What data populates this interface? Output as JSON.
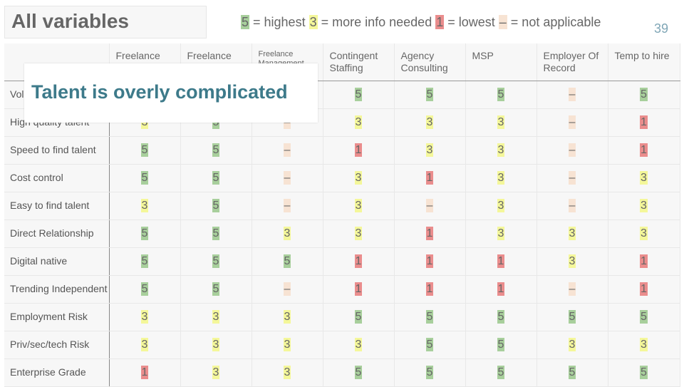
{
  "title": "All variables",
  "page_number": "39",
  "overlay_text": "Talent is overly complicated",
  "legend": [
    {
      "symbol": "5",
      "text": " = highest ",
      "color": "#a8cf9c"
    },
    {
      "symbol": "3",
      "text": " = more info needed ",
      "color": "#f4f79a"
    },
    {
      "symbol": "1",
      "text": " = lowest ",
      "color": "#ea8d8d"
    },
    {
      "symbol": "–",
      "text": " = not applicable",
      "color": "#f7e3d3"
    }
  ],
  "columns": [
    "Freelance",
    "Freelance",
    "Freelance Management",
    "Contingent Staffing",
    "Agency Consulting",
    "MSP",
    "Employer Of Record",
    "Temp to hire"
  ],
  "rows": [
    {
      "label": "Volume",
      "values": [
        "",
        "",
        "",
        "5",
        "5",
        "5",
        "–",
        "5"
      ]
    },
    {
      "label": "High quality talent",
      "values": [
        "3",
        "5",
        "–",
        "3",
        "3",
        "3",
        "–",
        "1"
      ]
    },
    {
      "label": "Speed to find talent",
      "values": [
        "5",
        "5",
        "–",
        "1",
        "3",
        "3",
        "–",
        "1"
      ]
    },
    {
      "label": "Cost control",
      "values": [
        "5",
        "5",
        "–",
        "3",
        "1",
        "3",
        "–",
        "3"
      ]
    },
    {
      "label": "Easy to find talent",
      "values": [
        "3",
        "5",
        "–",
        "3",
        "–",
        "3",
        "–",
        "3"
      ]
    },
    {
      "label": "Direct Relationship",
      "values": [
        "5",
        "5",
        "3",
        "3",
        "1",
        "3",
        "3",
        "3"
      ]
    },
    {
      "label": "Digital native",
      "values": [
        "5",
        "5",
        "5",
        "1",
        "1",
        "1",
        "3",
        "1"
      ]
    },
    {
      "label": "Trending Independent",
      "values": [
        "5",
        "5",
        "–",
        "1",
        "1",
        "1",
        "–",
        "1"
      ]
    },
    {
      "label": "Employment Risk",
      "values": [
        "3",
        "3",
        "3",
        "5",
        "5",
        "5",
        "5",
        "5"
      ]
    },
    {
      "label": "Priv/sec/tech Risk",
      "values": [
        "3",
        "3",
        "3",
        "3",
        "5",
        "5",
        "3",
        "3"
      ]
    },
    {
      "label": "Enterprise Grade",
      "values": [
        "1",
        "3",
        "3",
        "5",
        "5",
        "5",
        "5",
        "5"
      ]
    }
  ]
}
